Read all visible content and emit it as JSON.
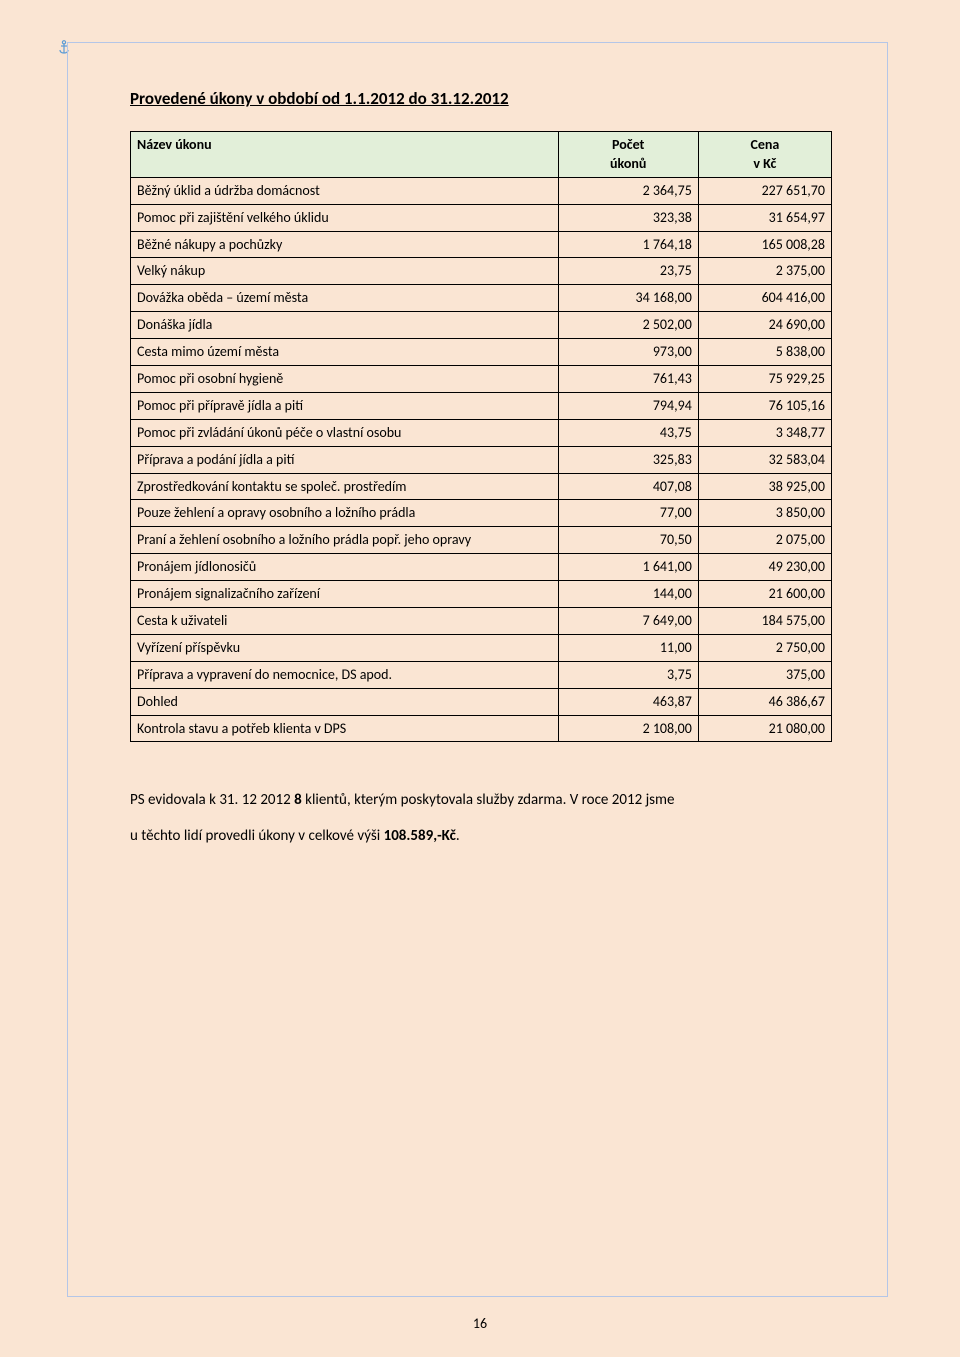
{
  "title": "Provedené úkony v období od 1.1.2012 do 31.12.2012",
  "table": {
    "columns": {
      "name": "Název úkonu",
      "count_l1": "Počet",
      "count_l2": "úkonů",
      "price_l1": "Cena",
      "price_l2": "v Kč"
    },
    "rows": [
      {
        "name": "Běžný úklid a údržba domácnost",
        "count": "2 364,75",
        "price": "227 651,70"
      },
      {
        "name": "Pomoc při zajištění velkého úklidu",
        "count": "323,38",
        "price": "31 654,97"
      },
      {
        "name": "Běžné nákupy a pochůzky",
        "count": "1 764,18",
        "price": "165 008,28"
      },
      {
        "name": "Velký nákup",
        "count": "23,75",
        "price": "2 375,00"
      },
      {
        "name": "Dovážka oběda – území města",
        "count": "34 168,00",
        "price": "604 416,00"
      },
      {
        "name": "Donáška jídla",
        "count": "2 502,00",
        "price": "24 690,00"
      },
      {
        "name": "Cesta mimo území města",
        "count": "973,00",
        "price": "5 838,00"
      },
      {
        "name": "Pomoc při osobní hygieně",
        "count": "761,43",
        "price": "75 929,25"
      },
      {
        "name": "Pomoc při přípravě jídla a pití",
        "count": "794,94",
        "price": "76 105,16"
      },
      {
        "name": "Pomoc při zvládání úkonů péče o vlastní osobu",
        "count": "43,75",
        "price": "3 348,77"
      },
      {
        "name": "Příprava a podání jídla a pití",
        "count": "325,83",
        "price": "32 583,04"
      },
      {
        "name": "Zprostředkování kontaktu se společ. prostředím",
        "count": "407,08",
        "price": "38 925,00"
      },
      {
        "name": "Pouze žehlení a opravy osobního a ložního prádla",
        "count": "77,00",
        "price": "3 850,00"
      },
      {
        "name": "Praní a žehlení osobního a ložního prádla popř. jeho opravy",
        "count": "70,50",
        "price": "2 075,00"
      },
      {
        "name": "Pronájem jídlonosičů",
        "count": "1 641,00",
        "price": "49 230,00"
      },
      {
        "name": "Pronájem signalizačního zařízení",
        "count": "144,00",
        "price": "21 600,00"
      },
      {
        "name": "Cesta k uživateli",
        "count": "7 649,00",
        "price": "184 575,00"
      },
      {
        "name": "Vyřízení příspěvku",
        "count": "11,00",
        "price": "2 750,00"
      },
      {
        "name": "Příprava a vypravení do nemocnice, DS apod.",
        "count": "3,75",
        "price": "375,00"
      },
      {
        "name": "Dohled",
        "count": "463,87",
        "price": "46 386,67"
      },
      {
        "name": "Kontrola stavu a potřeb klienta v DPS",
        "count": "2 108,00",
        "price": "21 080,00"
      }
    ]
  },
  "body": {
    "line1_pre": "PS evidovala k 31. 12 2012 ",
    "line1_bold": "8",
    "line1_post": " klientů, kterým poskytovala služby zdarma. V roce 2012 jsme",
    "line2_pre": "u těchto lidí provedli úkony v celkové výši ",
    "line2_bold": "108.589,-Kč",
    "line2_post": "."
  },
  "page_number": "16",
  "colors": {
    "page_bg": "#fae5d3",
    "frame_border": "#b4c6e7",
    "header_bg": "#e2efd9",
    "cell_border": "#000000",
    "text": "#000000"
  }
}
